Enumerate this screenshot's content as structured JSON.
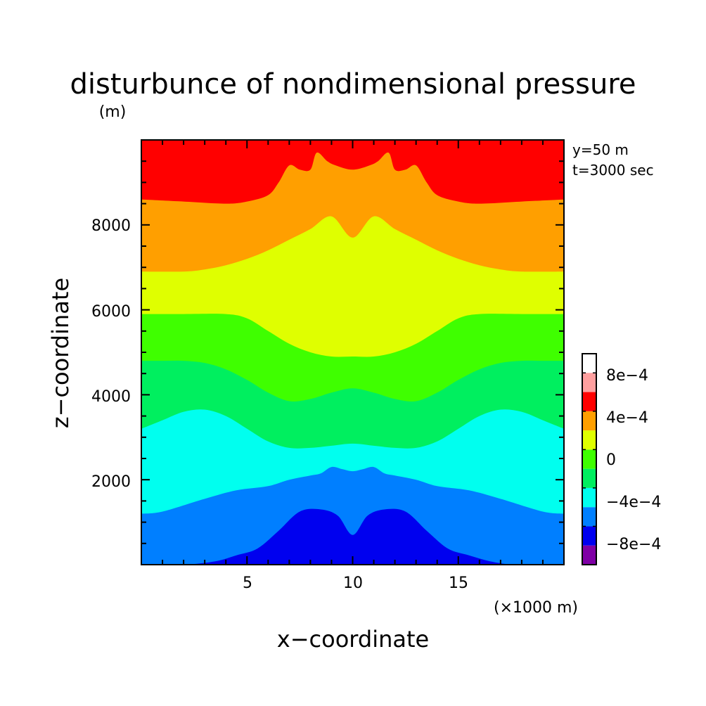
{
  "chart_data": {
    "type": "heatmap",
    "title": "disturbunce of nondimensional pressure",
    "xlabel": "x−coordinate",
    "ylabel": "z−coordinate",
    "x_unit": "(×1000 m)",
    "y_unit": "(m)",
    "annotations": [
      "y=50  m",
      "t=3000 sec"
    ],
    "xlim": [
      0,
      20
    ],
    "ylim": [
      0,
      10000
    ],
    "x_ticks": [
      5,
      10,
      15
    ],
    "x_tick_labels": [
      "5",
      "10",
      "15"
    ],
    "y_ticks": [
      2000,
      4000,
      6000,
      8000
    ],
    "y_tick_labels": [
      "2000",
      "4000",
      "6000",
      "8000"
    ],
    "levels": [
      -0.0012,
      -0.001,
      -0.0008,
      -0.0006,
      -0.0004,
      -0.0002,
      0,
      0.0002,
      0.0004,
      0.0006,
      0.0008,
      0.001
    ],
    "colors": [
      "#7f00a5",
      "#0000ef",
      "#007fff",
      "#00ffef",
      "#00ef5f",
      "#3fff00",
      "#dfff00",
      "#ff9f00",
      "#ff0000",
      "#ff9f9f"
    ],
    "colorbar_labels": [
      "8e−4",
      "4e−4",
      "0",
      "−4e−4",
      "−8e−4"
    ],
    "colorbar_label_values": [
      0.0008,
      0.0004,
      0,
      -0.0004,
      -0.0008
    ],
    "boundaries": [
      {
        "name": "b-0.0006",
        "x": [
          0,
          2,
          3.5,
          4.5,
          5.5,
          6.5,
          7.5,
          8.5,
          9.3,
          10,
          10.7,
          11.5,
          12.5,
          13.5,
          14.5,
          15.5,
          16.5,
          17.5,
          18,
          20
        ],
        "z": [
          0,
          0,
          80,
          220,
          380,
          800,
          1250,
          1300,
          1150,
          700,
          1150,
          1300,
          1250,
          800,
          380,
          220,
          80,
          0,
          0,
          0
        ]
      },
      {
        "name": "b-0.0004",
        "x": [
          0,
          1,
          3,
          4.5,
          6,
          7,
          8,
          8.5,
          9,
          9.5,
          10,
          10.5,
          11,
          11.5,
          12,
          13,
          14,
          15.5,
          17,
          19,
          20
        ],
        "z": [
          1200,
          1250,
          1550,
          1750,
          1850,
          2000,
          2100,
          2150,
          2300,
          2250,
          2200,
          2250,
          2300,
          2150,
          2100,
          2000,
          1850,
          1750,
          1550,
          1250,
          1200
        ]
      },
      {
        "name": "b-0.0002",
        "x": [
          0,
          1,
          2,
          3,
          4,
          5,
          6,
          7,
          8,
          9,
          10,
          11,
          12,
          13,
          14,
          15,
          16,
          17,
          18,
          19,
          20
        ],
        "z": [
          3200,
          3400,
          3600,
          3650,
          3500,
          3200,
          2900,
          2750,
          2750,
          2800,
          2850,
          2800,
          2750,
          2750,
          2900,
          3200,
          3500,
          3650,
          3600,
          3400,
          3200
        ]
      },
      {
        "name": "b0",
        "x": [
          0,
          1,
          2,
          3,
          4,
          5,
          6,
          7,
          8,
          9,
          10,
          11,
          12,
          13,
          14,
          15,
          16,
          17,
          18,
          19,
          20
        ],
        "z": [
          4800,
          4800,
          4800,
          4750,
          4600,
          4350,
          4050,
          3850,
          3900,
          4050,
          4150,
          4050,
          3900,
          3850,
          4050,
          4350,
          4600,
          4750,
          4800,
          4800,
          4800
        ]
      },
      {
        "name": "b0.0002",
        "x": [
          0,
          2,
          4,
          5,
          6,
          7,
          8,
          9,
          10,
          11,
          12,
          13,
          14,
          15,
          16,
          18,
          20
        ],
        "z": [
          5900,
          5900,
          5900,
          5800,
          5500,
          5200,
          5000,
          4900,
          4900,
          4900,
          5000,
          5200,
          5500,
          5800,
          5900,
          5900,
          5900
        ]
      },
      {
        "name": "b0.0004",
        "x": [
          0,
          2,
          3,
          4,
          5,
          6,
          7,
          8,
          9,
          10,
          11,
          12,
          13,
          14,
          15,
          16,
          17,
          18,
          20
        ],
        "z": [
          6900,
          6900,
          6950,
          7050,
          7200,
          7400,
          7650,
          7900,
          8200,
          7700,
          8200,
          7900,
          7650,
          7400,
          7200,
          7050,
          6950,
          6900,
          6900
        ]
      },
      {
        "name": "b0.0006",
        "x": [
          0,
          2,
          4,
          5,
          6,
          6.5,
          7,
          7.5,
          8,
          8.3,
          8.8,
          9.2,
          10,
          10.8,
          11.2,
          11.7,
          12,
          12.5,
          13,
          13.5,
          14,
          15,
          16,
          18,
          20
        ],
        "z": [
          8600,
          8550,
          8500,
          8550,
          8700,
          9000,
          9400,
          9300,
          9300,
          9700,
          9500,
          9400,
          9300,
          9400,
          9500,
          9700,
          9300,
          9300,
          9400,
          9000,
          8700,
          8550,
          8500,
          8550,
          8600
        ]
      }
    ]
  }
}
